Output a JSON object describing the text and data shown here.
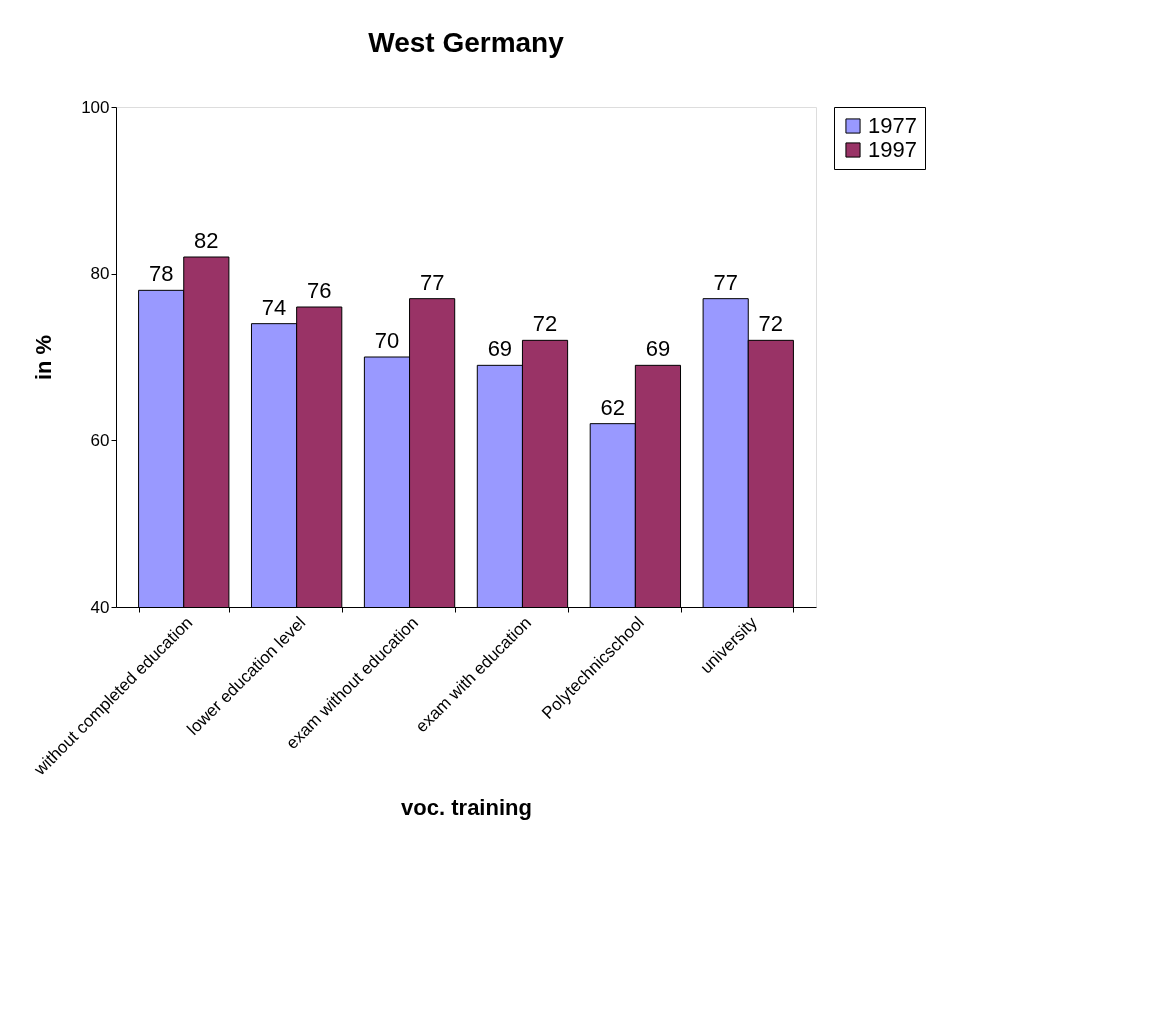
{
  "chart_data": {
    "type": "bar",
    "title": "West Germany",
    "xlabel": "voc. training",
    "ylabel": "in %",
    "categories": [
      "without completed education",
      "lower education level",
      "exam without education",
      "exam with education",
      "Polytechnicschool",
      "university"
    ],
    "series": [
      {
        "name": "1977",
        "color": "#9999ff",
        "values": [
          78,
          74,
          70,
          69,
          62,
          77
        ]
      },
      {
        "name": "1997",
        "color": "#993366",
        "values": [
          82,
          76,
          77,
          72,
          69,
          72
        ]
      }
    ],
    "ylim": [
      40,
      100
    ],
    "yticks": [
      40,
      60,
      80,
      100
    ],
    "grid": false,
    "legend": "right",
    "data_labels": true
  }
}
